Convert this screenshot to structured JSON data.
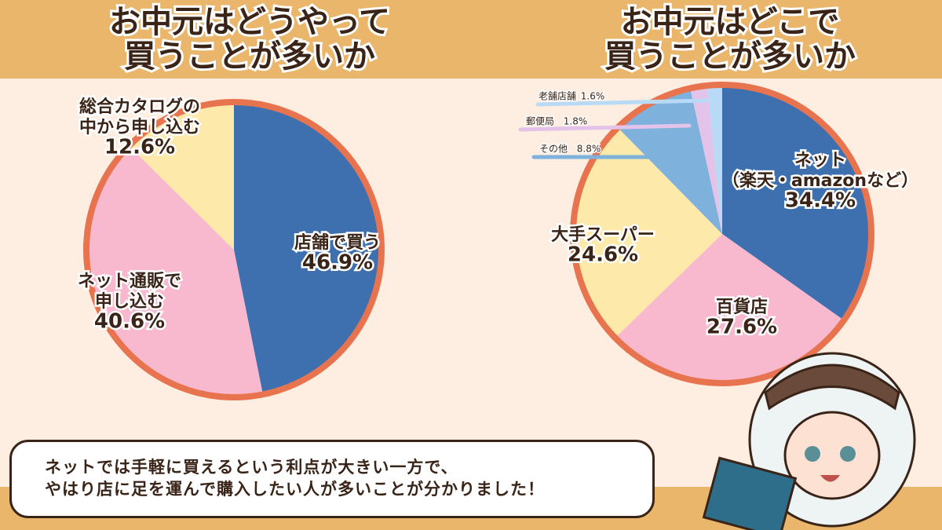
{
  "chart_data": [
    {
      "type": "pie",
      "title": "お中元はどうやって\n買うことが多いか",
      "categories": [
        "店舗で買う",
        "ネット通販で\n申し込む",
        "総合カタログの\n中から申し込む"
      ],
      "values": [
        46.9,
        40.6,
        12.6
      ],
      "value_labels": [
        "46.9%",
        "40.6%",
        "12.6%"
      ],
      "colors": [
        "#3e6fae",
        "#f8b9cf",
        "#fde9a9"
      ],
      "border_color": "#e8744f"
    },
    {
      "type": "pie",
      "title": "お中元はどこで\n買うことが多いか",
      "categories": [
        "ネット\n（楽天・amazonなど）",
        "百貨店",
        "大手スーパー",
        "その他",
        "郵便局",
        "老舗店舗"
      ],
      "values": [
        34.4,
        27.6,
        24.6,
        8.8,
        1.8,
        1.6
      ],
      "value_labels": [
        "34.4%",
        "27.6%",
        "24.6%",
        "8.8%",
        "1.8%",
        "1.6%"
      ],
      "colors": [
        "#3e6fae",
        "#f8b9cf",
        "#fde9a9",
        "#7eb1dc",
        "#e3c3ea",
        "#b9daf6"
      ],
      "border_color": "#e8744f"
    }
  ],
  "speech_bubble": {
    "lines": [
      "ネットでは手軽に買えるという利点が大きい一方で、",
      "やはり店に足を運んで購入したい人が多いことが分かりました！"
    ]
  }
}
